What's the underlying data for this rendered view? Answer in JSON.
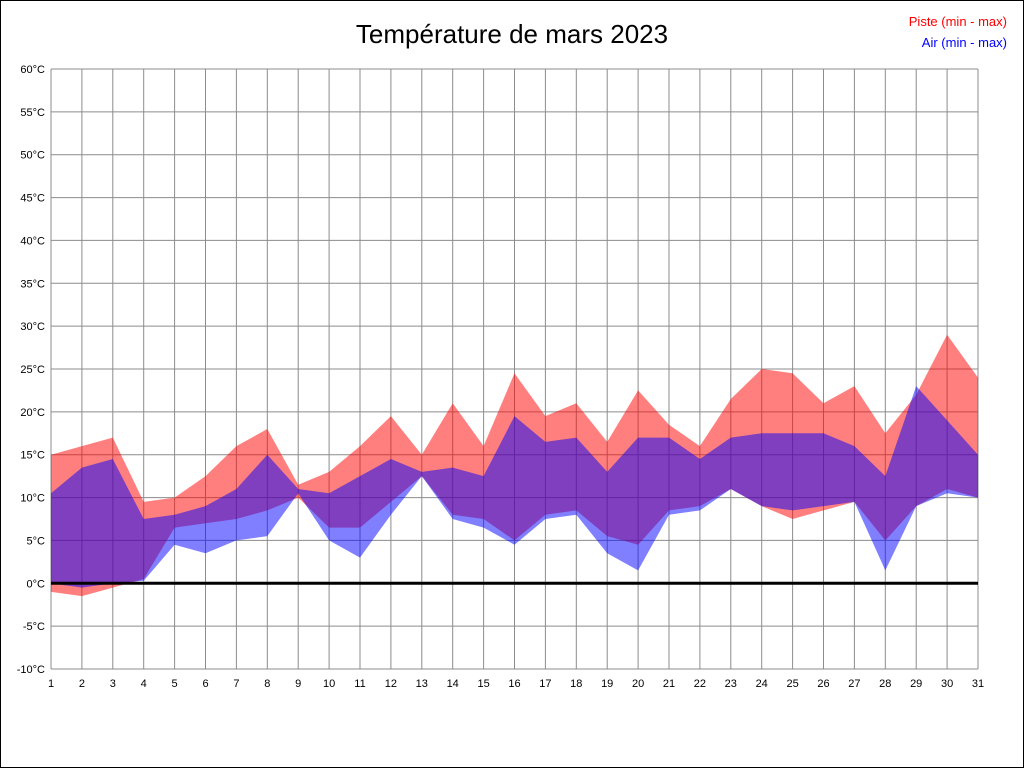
{
  "chart_data": {
    "type": "area",
    "title": "Température de mars 2023",
    "xlabel": "",
    "ylabel": "",
    "x": [
      1,
      2,
      3,
      4,
      5,
      6,
      7,
      8,
      9,
      10,
      11,
      12,
      13,
      14,
      15,
      16,
      17,
      18,
      19,
      20,
      21,
      22,
      23,
      24,
      25,
      26,
      27,
      28,
      29,
      30,
      31
    ],
    "ylim": [
      -10,
      60
    ],
    "ytick_step": 5,
    "ytick_suffix": "°C",
    "grid": true,
    "grid_color": "#8c8c8c",
    "zero_line_color": "#000000",
    "legend_position": "top-right",
    "series": [
      {
        "name": "Piste (min - max)",
        "color": "#ff0000",
        "fill_opacity": 0.5,
        "max": [
          15,
          16,
          17,
          9.5,
          10,
          12.5,
          16,
          18,
          11.5,
          13,
          16,
          19.5,
          15,
          21,
          16,
          24.5,
          19.5,
          21,
          16.5,
          22.5,
          18.5,
          16,
          21.5,
          25,
          24.5,
          21,
          23,
          17.5,
          22,
          29,
          24
        ],
        "min": [
          -1,
          -1.5,
          -0.5,
          0.5,
          6.5,
          7,
          7.5,
          8.5,
          10,
          6.5,
          6.5,
          9.5,
          12.5,
          8,
          7.5,
          5,
          8,
          8.5,
          5.5,
          4.5,
          8.5,
          9,
          11,
          9,
          7.5,
          8.5,
          9.5,
          5,
          9,
          11,
          10
        ]
      },
      {
        "name": "Air (min - max)",
        "color": "#0000ff",
        "fill_opacity": 0.5,
        "max": [
          10.5,
          13.5,
          14.5,
          7.5,
          8,
          9,
          11,
          15,
          11,
          10.5,
          12.5,
          14.5,
          13,
          13.5,
          12.5,
          19.5,
          16.5,
          17,
          13,
          17,
          17,
          14.5,
          17,
          17.5,
          17.5,
          17.5,
          16,
          12.5,
          23,
          19,
          15
        ],
        "min": [
          0,
          -0.5,
          0,
          0.3,
          4.5,
          3.5,
          5,
          5.5,
          10.5,
          5,
          3,
          8,
          12.5,
          7.5,
          6.5,
          4.5,
          7.5,
          8,
          3.5,
          1.5,
          8,
          8.5,
          11,
          9,
          8.5,
          9,
          9.5,
          1.5,
          9,
          10.5,
          10
        ]
      }
    ]
  }
}
